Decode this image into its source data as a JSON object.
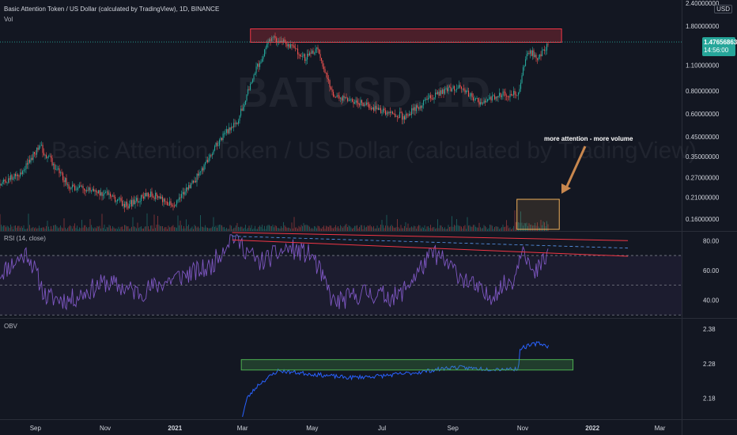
{
  "header": {
    "title": "Basic Attention Token / US Dollar (calculated by TradingView), 1D, BINANCE",
    "vol_label": "Vol",
    "currency_button": "USD"
  },
  "watermark": {
    "symbol": "BATUSD, 1D",
    "name": "Basic Attention Token / US Dollar (calculated by TradingView)"
  },
  "annotation": {
    "text": "more attention - more volume"
  },
  "price_badge": {
    "price": "1.47656863",
    "countdown": "14:56:00"
  },
  "rsi_label": "RSI (14, close)",
  "obv_label": "OBV",
  "colors": {
    "background": "#131722",
    "up": "#26a69a",
    "down": "#ef5350",
    "rsi_line": "#7e57c2",
    "obv_line": "#2962ff",
    "resistance_box": "#f23645",
    "support_box": "#4caf50",
    "volume_box": "#f0b05a",
    "arrow": "#c8874e"
  },
  "chart_data": [
    {
      "type": "candlestick",
      "panel": "price",
      "title": "Basic Attention Token / US Dollar (calculated by TradingView), 1D, BINANCE",
      "scale": "log",
      "y_axis_labels": [
        "2.40000000",
        "1.80000000",
        "1.10000000",
        "0.80000000",
        "0.60000000",
        "0.45000000",
        "0.35000000",
        "0.27000000",
        "0.21000000",
        "0.16000000"
      ],
      "x_axis_labels": [
        "Sep",
        "Nov",
        "2021",
        "Mar",
        "May",
        "Jul",
        "Sep",
        "Nov",
        "2022",
        "Mar"
      ],
      "approx_close_path": {
        "dates": [
          "2020-08-01",
          "2020-08-20",
          "2020-09-05",
          "2020-10-01",
          "2020-11-01",
          "2020-11-20",
          "2020-12-10",
          "2020-12-31",
          "2021-01-20",
          "2021-02-10",
          "2021-02-25",
          "2021-03-10",
          "2021-03-25",
          "2021-04-10",
          "2021-04-25",
          "2021-05-05",
          "2021-05-20",
          "2021-06-10",
          "2021-07-01",
          "2021-07-20",
          "2021-08-15",
          "2021-09-05",
          "2021-09-25",
          "2021-10-15",
          "2021-10-28",
          "2021-11-05",
          "2021-11-15",
          "2021-11-24"
        ],
        "close": [
          0.25,
          0.29,
          0.4,
          0.24,
          0.22,
          0.19,
          0.22,
          0.19,
          0.27,
          0.44,
          0.55,
          0.95,
          1.55,
          1.45,
          1.2,
          1.35,
          0.75,
          0.7,
          0.62,
          0.58,
          0.75,
          0.85,
          0.68,
          0.76,
          0.78,
          1.35,
          1.2,
          1.48
        ]
      },
      "current_price": 1.47656863,
      "annotations": [
        "more attention - more volume"
      ]
    },
    {
      "type": "line",
      "panel": "RSI",
      "name": "RSI (14, close)",
      "ylim": [
        28,
        86
      ],
      "y_axis_labels": [
        "80.00",
        "60.00",
        "40.00"
      ],
      "levels": [
        70,
        50,
        30
      ],
      "approx_values": {
        "dates": [
          "2020-08-01",
          "2020-08-25",
          "2020-09-10",
          "2020-10-01",
          "2020-11-01",
          "2020-12-01",
          "2021-01-01",
          "2021-02-01",
          "2021-02-20",
          "2021-03-15",
          "2021-04-10",
          "2021-05-01",
          "2021-05-20",
          "2021-06-15",
          "2021-07-15",
          "2021-08-15",
          "2021-09-10",
          "2021-10-01",
          "2021-10-25",
          "2021-11-01",
          "2021-11-10",
          "2021-11-24"
        ],
        "values": [
          58,
          72,
          42,
          40,
          52,
          45,
          55,
          62,
          84,
          65,
          75,
          70,
          38,
          45,
          42,
          72,
          55,
          42,
          55,
          80,
          55,
          72
        ]
      }
    },
    {
      "type": "line",
      "panel": "OBV",
      "name": "OBV",
      "y_axis_labels": [
        "2.38",
        "2.28",
        "2.18"
      ],
      "approx_values": {
        "dates": [
          "2021-03-01",
          "2021-03-05",
          "2021-03-15",
          "2021-04-01",
          "2021-05-01",
          "2021-06-01",
          "2021-07-01",
          "2021-08-01",
          "2021-09-01",
          "2021-10-01",
          "2021-10-28",
          "2021-10-30",
          "2021-11-15",
          "2021-11-24"
        ],
        "values": [
          2.13,
          2.18,
          2.22,
          2.26,
          2.25,
          2.24,
          2.245,
          2.255,
          2.27,
          2.265,
          2.265,
          2.325,
          2.34,
          2.33
        ]
      }
    }
  ]
}
